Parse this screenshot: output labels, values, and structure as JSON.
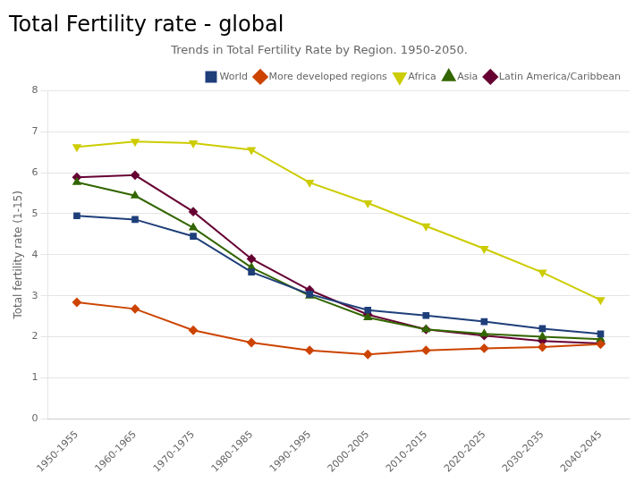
{
  "chart_data": {
    "type": "line",
    "title": "Total Fertility rate - global",
    "subtitle": "Trends in Total Fertility Rate by Region. 1950-2050.",
    "ylabel": "Total fertility rate (1-15)",
    "categories": [
      "1950-1955",
      "1960-1965",
      "1970-1975",
      "1980-1985",
      "1990-1995",
      "2000-2005",
      "2010-2015",
      "2020-2025",
      "2030-2035",
      "2040-2045"
    ],
    "series": [
      {
        "name": "World",
        "color": "#1f3f7a",
        "marker": "square",
        "values": [
          4.95,
          4.86,
          4.45,
          3.58,
          3.04,
          2.65,
          2.52,
          2.37,
          2.2,
          2.07
        ]
      },
      {
        "name": "More developed regions",
        "color": "#cc4400",
        "marker": "diamond",
        "values": [
          2.84,
          2.68,
          2.16,
          1.86,
          1.67,
          1.57,
          1.67,
          1.72,
          1.75,
          1.82
        ]
      },
      {
        "name": "Africa",
        "color": "#cccc00",
        "marker": "triangle_down",
        "values": [
          6.63,
          6.76,
          6.72,
          6.56,
          5.76,
          5.26,
          4.7,
          4.15,
          3.57,
          2.9
        ]
      },
      {
        "name": "Asia",
        "color": "#336600",
        "marker": "triangle_up",
        "values": [
          5.77,
          5.44,
          4.66,
          3.69,
          3.0,
          2.47,
          2.18,
          2.07,
          2.0,
          1.94
        ]
      },
      {
        "name": "Latin America/Caribbean",
        "color": "#660033",
        "marker": "diamond",
        "values": [
          5.89,
          5.94,
          5.05,
          3.9,
          3.14,
          2.54,
          2.18,
          2.03,
          1.9,
          1.84
        ]
      }
    ],
    "ylim": [
      0,
      8
    ],
    "yticks": [
      0,
      1,
      2,
      3,
      4,
      5,
      6,
      7,
      8
    ],
    "grid": "y",
    "legend": "upper right"
  }
}
